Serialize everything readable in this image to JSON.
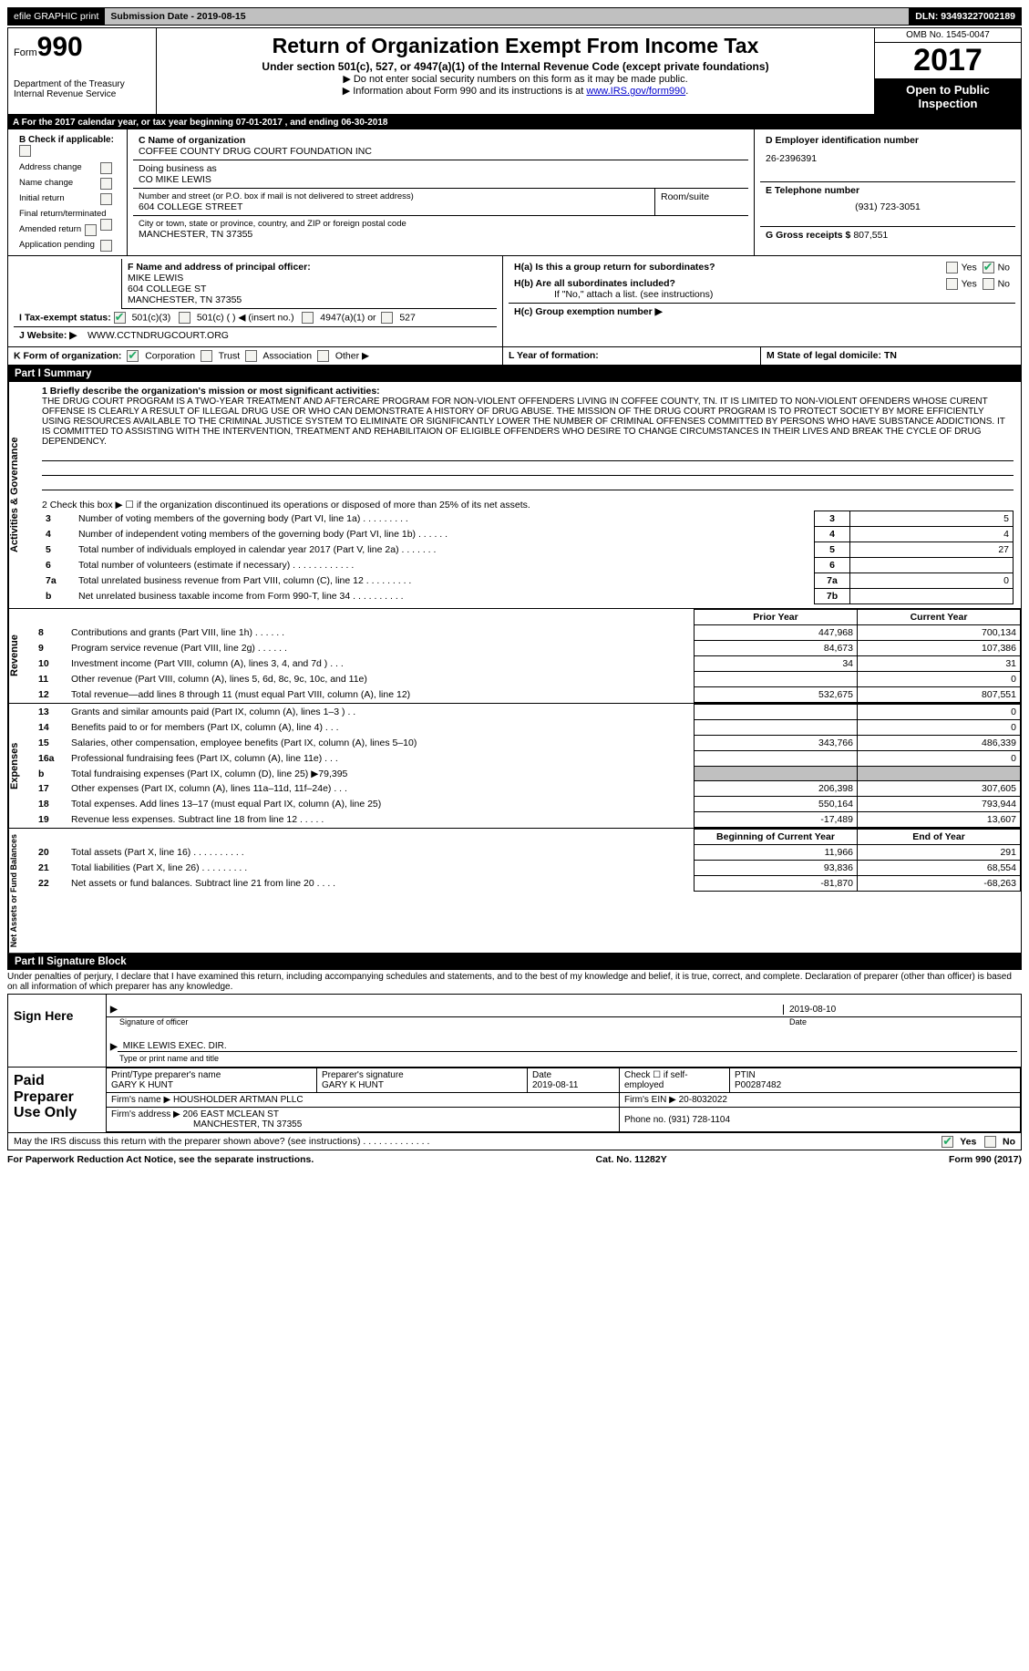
{
  "topbar": {
    "efile": "efile GRAPHIC print",
    "sub_date_label": "Submission Date - 2019-08-15",
    "dln": "DLN: 93493227002189"
  },
  "header": {
    "form_prefix": "Form",
    "form_num": "990",
    "dept": "Department of the Treasury\nInternal Revenue Service",
    "title": "Return of Organization Exempt From Income Tax",
    "subtitle": "Under section 501(c), 527, or 4947(a)(1) of the Internal Revenue Code (except private foundations)",
    "note1": "▶ Do not enter social security numbers on this form as it may be made public.",
    "note2_pre": "▶ Information about Form 990 and its instructions is at ",
    "note2_link": "www.IRS.gov/form990",
    "omb": "OMB No. 1545-0047",
    "year": "2017",
    "open_public": "Open to Public Inspection"
  },
  "line_a": "A   For the 2017 calendar year, or tax year beginning 07-01-2017       , and ending 06-30-2018",
  "block_b": {
    "label": "B  Check if applicable:",
    "items": [
      "Address change",
      "Name change",
      "Initial return",
      "Final return/terminated",
      "Amended return",
      "Application pending"
    ]
  },
  "block_c": {
    "label": "C Name of organization",
    "name": "COFFEE COUNTY DRUG COURT FOUNDATION INC",
    "dba_label": "Doing business as",
    "dba": "CO MIKE LEWIS",
    "street_label": "Number and street (or P.O. box if mail is not delivered to street address)",
    "street": "604 COLLEGE STREET",
    "room_label": "Room/suite",
    "city_label": "City or town, state or province, country, and ZIP or foreign postal code",
    "city": "MANCHESTER, TN  37355"
  },
  "block_d": {
    "label": "D Employer identification number",
    "value": "26-2396391"
  },
  "block_e": {
    "label": "E Telephone number",
    "value": "(931) 723-3051"
  },
  "block_g": {
    "label": "G Gross receipts $",
    "value": "807,551"
  },
  "block_f": {
    "label": "F  Name and address of principal officer:",
    "name": "MIKE LEWIS",
    "street": "604 COLLEGE ST",
    "city": "MANCHESTER, TN  37355"
  },
  "block_h": {
    "ha": "H(a)   Is this a group return for subordinates?",
    "hb": "H(b)   Are all subordinates included?",
    "hb_note": "If \"No,\" attach a list. (see instructions)",
    "hc": "H(c)   Group exemption number ▶",
    "yes": "Yes",
    "no": "No"
  },
  "taxexempt": {
    "label": "I   Tax-exempt status:",
    "opts": [
      "501(c)(3)",
      "501(c) (  ) ◀ (insert no.)",
      "4947(a)(1) or",
      "527"
    ]
  },
  "website": {
    "label": "J   Website: ▶",
    "value": "WWW.CCTNDRUGCOURT.ORG"
  },
  "block_k": {
    "label": "K Form of organization:",
    "opts": [
      "Corporation",
      "Trust",
      "Association",
      "Other ▶"
    ]
  },
  "block_l": "L Year of formation:",
  "block_m": "M State of legal domicile: TN",
  "part1": {
    "header": "Part I       Summary",
    "side": "Activities & Governance",
    "q1_label": "1   Briefly describe the organization's mission or most significant activities:",
    "mission": "THE DRUG COURT PROGRAM IS A TWO-YEAR TREATMENT AND AFTERCARE PROGRAM FOR NON-VIOLENT OFFENDERS LIVING IN COFFEE COUNTY, TN. IT IS LIMITED TO NON-VIOLENT OFENDERS WHOSE CURENT OFFENSE IS CLEARLY A RESULT OF ILLEGAL DRUG USE OR WHO CAN DEMONSTRATE A HISTORY OF DRUG ABUSE. THE MISSION OF THE DRUG COURT PROGRAM IS TO PROTECT SOCIETY BY MORE EFFICIENTLY USING RESOURCES AVAILABLE TO THE CRIMINAL JUSTICE SYSTEM TO ELIMINATE OR SIGNIFICANTLY LOWER THE NUMBER OF CRIMINAL OFFENSES COMMITTED BY PERSONS WHO HAVE SUBSTANCE ADDICTIONS. IT IS COMMITTED TO ASSISTING WITH THE INTERVENTION, TREATMENT AND REHABILITAION OF ELIGIBLE OFFENDERS WHO DESIRE TO CHANGE CIRCUMSTANCES IN THEIR LIVES AND BREAK THE CYCLE OF DRUG DEPENDENCY.",
    "q2": "2     Check this box ▶ ☐ if the organization discontinued its operations or disposed of more than 25% of its net assets.",
    "rows": [
      {
        "n": "3",
        "label": "Number of voting members of the governing body (Part VI, line 1a)   .     .     .     .     .     .     .     .     .",
        "box": "3",
        "val": "5"
      },
      {
        "n": "4",
        "label": "Number of independent voting members of the governing body (Part VI, line 1b)   .     .     .     .     .     .",
        "box": "4",
        "val": "4"
      },
      {
        "n": "5",
        "label": "Total number of individuals employed in calendar year 2017 (Part V, line 2a)   .     .     .     .     .     .     .",
        "box": "5",
        "val": "27"
      },
      {
        "n": "6",
        "label": "Total number of volunteers (estimate if necessary)   .     .     .     .     .     .     .     .     .     .     .     .",
        "box": "6",
        "val": ""
      },
      {
        "n": "7a",
        "label": "Total unrelated business revenue from Part VIII, column (C), line 12   .     .     .     .     .     .     .     .     .",
        "box": "7a",
        "val": "0"
      },
      {
        "n": "b",
        "label": "Net unrelated business taxable income from Form 990-T, line 34   .     .     .     .     .     .     .     .     .     .",
        "box": "7b",
        "val": ""
      }
    ]
  },
  "headers2": {
    "prior": "Prior Year",
    "current": "Current Year"
  },
  "revenue": {
    "side": "Revenue",
    "rows": [
      {
        "n": "8",
        "label": "Contributions and grants (Part VIII, line 1h)   .     .     .     .     .     .",
        "p": "447,968",
        "c": "700,134"
      },
      {
        "n": "9",
        "label": "Program service revenue (Part VIII, line 2g)   .     .     .     .     .     .",
        "p": "84,673",
        "c": "107,386"
      },
      {
        "n": "10",
        "label": "Investment income (Part VIII, column (A), lines 3, 4, and 7d )   .     .     .",
        "p": "34",
        "c": "31"
      },
      {
        "n": "11",
        "label": "Other revenue (Part VIII, column (A), lines 5, 6d, 8c, 9c, 10c, and 11e)",
        "p": "",
        "c": "0"
      },
      {
        "n": "12",
        "label": "Total revenue—add lines 8 through 11 (must equal Part VIII, column (A), line 12)",
        "p": "532,675",
        "c": "807,551"
      }
    ]
  },
  "expenses": {
    "side": "Expenses",
    "rows": [
      {
        "n": "13",
        "label": "Grants and similar amounts paid (Part IX, column (A), lines 1–3 )   .     .",
        "p": "",
        "c": "0"
      },
      {
        "n": "14",
        "label": "Benefits paid to or for members (Part IX, column (A), line 4)   .     .     .",
        "p": "",
        "c": "0"
      },
      {
        "n": "15",
        "label": "Salaries, other compensation, employee benefits (Part IX, column (A), lines 5–10)",
        "p": "343,766",
        "c": "486,339"
      },
      {
        "n": "16a",
        "label": "Professional fundraising fees (Part IX, column (A), line 11e)   .     .     .",
        "p": "",
        "c": "0"
      },
      {
        "n": "b",
        "label": "Total fundraising expenses (Part IX, column (D), line 25) ▶79,395",
        "p": "grey",
        "c": "grey"
      },
      {
        "n": "17",
        "label": "Other expenses (Part IX, column (A), lines 11a–11d, 11f–24e)   .     .     .",
        "p": "206,398",
        "c": "307,605"
      },
      {
        "n": "18",
        "label": "Total expenses. Add lines 13–17 (must equal Part IX, column (A), line 25)",
        "p": "550,164",
        "c": "793,944"
      },
      {
        "n": "19",
        "label": "Revenue less expenses. Subtract line 18 from line 12   .     .     .     .     .",
        "p": "-17,489",
        "c": "13,607"
      }
    ]
  },
  "netassets": {
    "side": "Net Assets or Fund Balances",
    "head_p": "Beginning of Current Year",
    "head_c": "End of Year",
    "rows": [
      {
        "n": "20",
        "label": "Total assets (Part X, line 16)   .     .     .     .     .     .     .     .     .     .",
        "p": "11,966",
        "c": "291"
      },
      {
        "n": "21",
        "label": "Total liabilities (Part X, line 26)   .     .     .     .     .     .     .     .     .",
        "p": "93,836",
        "c": "68,554"
      },
      {
        "n": "22",
        "label": "Net assets or fund balances. Subtract line 21 from line 20   .     .     .     .",
        "p": "-81,870",
        "c": "-68,263"
      }
    ]
  },
  "part2": {
    "header": "Part II      Signature Block",
    "penalty": "Under penalties of perjury, I declare that I have examined this return, including accompanying schedules and statements, and to the best of my knowledge and belief, it is true, correct, and complete. Declaration of preparer (other than officer) is based on all information of which preparer has any knowledge.",
    "sign_here": "Sign Here",
    "sig_officer": "Signature of officer",
    "sig_date": "2019-08-10",
    "date_label": "Date",
    "printed_name": "MIKE LEWIS EXEC. DIR.",
    "printed_label": "Type or print name and title",
    "paid_label": "Paid Preparer Use Only",
    "prep_name_label": "Print/Type preparer's name",
    "prep_name": "GARY K HUNT",
    "prep_sig_label": "Preparer's signature",
    "prep_sig": "GARY K HUNT",
    "prep_date_label": "Date",
    "prep_date": "2019-08-11",
    "self_emp": "Check ☐ if self-employed",
    "ptin_label": "PTIN",
    "ptin": "P00287482",
    "firm_name_label": "Firm's name    ▶",
    "firm_name": "HOUSHOLDER ARTMAN PLLC",
    "firm_ein_label": "Firm's EIN ▶",
    "firm_ein": "20-8032022",
    "firm_addr_label": "Firm's address ▶",
    "firm_addr": "206 EAST MCLEAN ST",
    "firm_city": "MANCHESTER, TN  37355",
    "phone_label": "Phone no.",
    "phone": "(931) 728-1104",
    "may_irs": "May the IRS discuss this return with the preparer shown above? (see instructions)   .     .     .     .     .     .     .     .     .     .     .     .     .",
    "yes": "Yes",
    "no": "No"
  },
  "footer": {
    "left": "For Paperwork Reduction Act Notice, see the separate instructions.",
    "center": "Cat. No. 11282Y",
    "right": "Form 990 (2017)"
  }
}
